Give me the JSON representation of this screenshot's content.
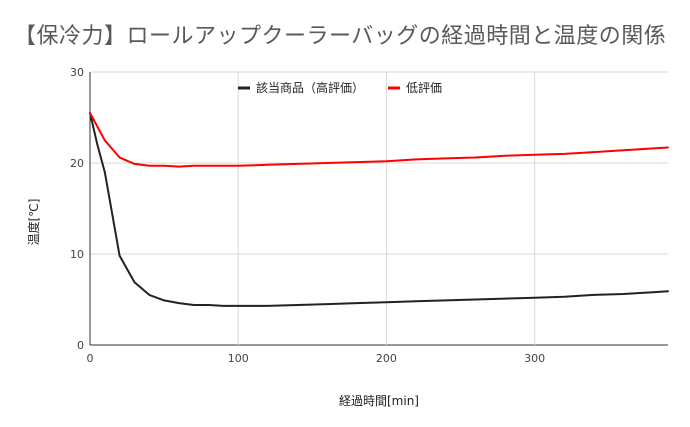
{
  "chart_data": {
    "type": "line",
    "title": "【保冷力】ロールアップクーラーバッグの経過時間と温度の関係",
    "xlabel": "経過時間[min]",
    "ylabel": "温度[℃]",
    "xlim": [
      0,
      390
    ],
    "ylim": [
      0,
      30
    ],
    "xticks": [
      0,
      100,
      200,
      300
    ],
    "yticks": [
      0,
      10,
      20,
      30
    ],
    "grid": true,
    "legend_position": "top-center",
    "series": [
      {
        "name": "該当商品（高評価）",
        "color": "#222222",
        "points": [
          [
            0,
            25.5
          ],
          [
            5,
            22
          ],
          [
            10,
            19
          ],
          [
            20,
            9.8
          ],
          [
            30,
            6.9
          ],
          [
            40,
            5.5
          ],
          [
            50,
            4.9
          ],
          [
            60,
            4.6
          ],
          [
            70,
            4.4
          ],
          [
            80,
            4.4
          ],
          [
            90,
            4.3
          ],
          [
            100,
            4.3
          ],
          [
            120,
            4.3
          ],
          [
            140,
            4.4
          ],
          [
            160,
            4.5
          ],
          [
            180,
            4.6
          ],
          [
            200,
            4.7
          ],
          [
            220,
            4.8
          ],
          [
            240,
            4.9
          ],
          [
            260,
            5.0
          ],
          [
            280,
            5.1
          ],
          [
            300,
            5.2
          ],
          [
            320,
            5.3
          ],
          [
            340,
            5.5
          ],
          [
            360,
            5.6
          ],
          [
            380,
            5.8
          ],
          [
            390,
            5.9
          ]
        ]
      },
      {
        "name": "低評価",
        "color": "#ff0000",
        "points": [
          [
            0,
            25.5
          ],
          [
            10,
            22.5
          ],
          [
            20,
            20.6
          ],
          [
            30,
            19.9
          ],
          [
            40,
            19.7
          ],
          [
            50,
            19.7
          ],
          [
            60,
            19.6
          ],
          [
            70,
            19.7
          ],
          [
            80,
            19.7
          ],
          [
            100,
            19.7
          ],
          [
            120,
            19.8
          ],
          [
            140,
            19.9
          ],
          [
            160,
            20.0
          ],
          [
            180,
            20.1
          ],
          [
            200,
            20.2
          ],
          [
            220,
            20.4
          ],
          [
            240,
            20.5
          ],
          [
            260,
            20.6
          ],
          [
            280,
            20.8
          ],
          [
            300,
            20.9
          ],
          [
            320,
            21.0
          ],
          [
            340,
            21.2
          ],
          [
            360,
            21.4
          ],
          [
            380,
            21.6
          ],
          [
            390,
            21.7
          ]
        ]
      }
    ]
  }
}
